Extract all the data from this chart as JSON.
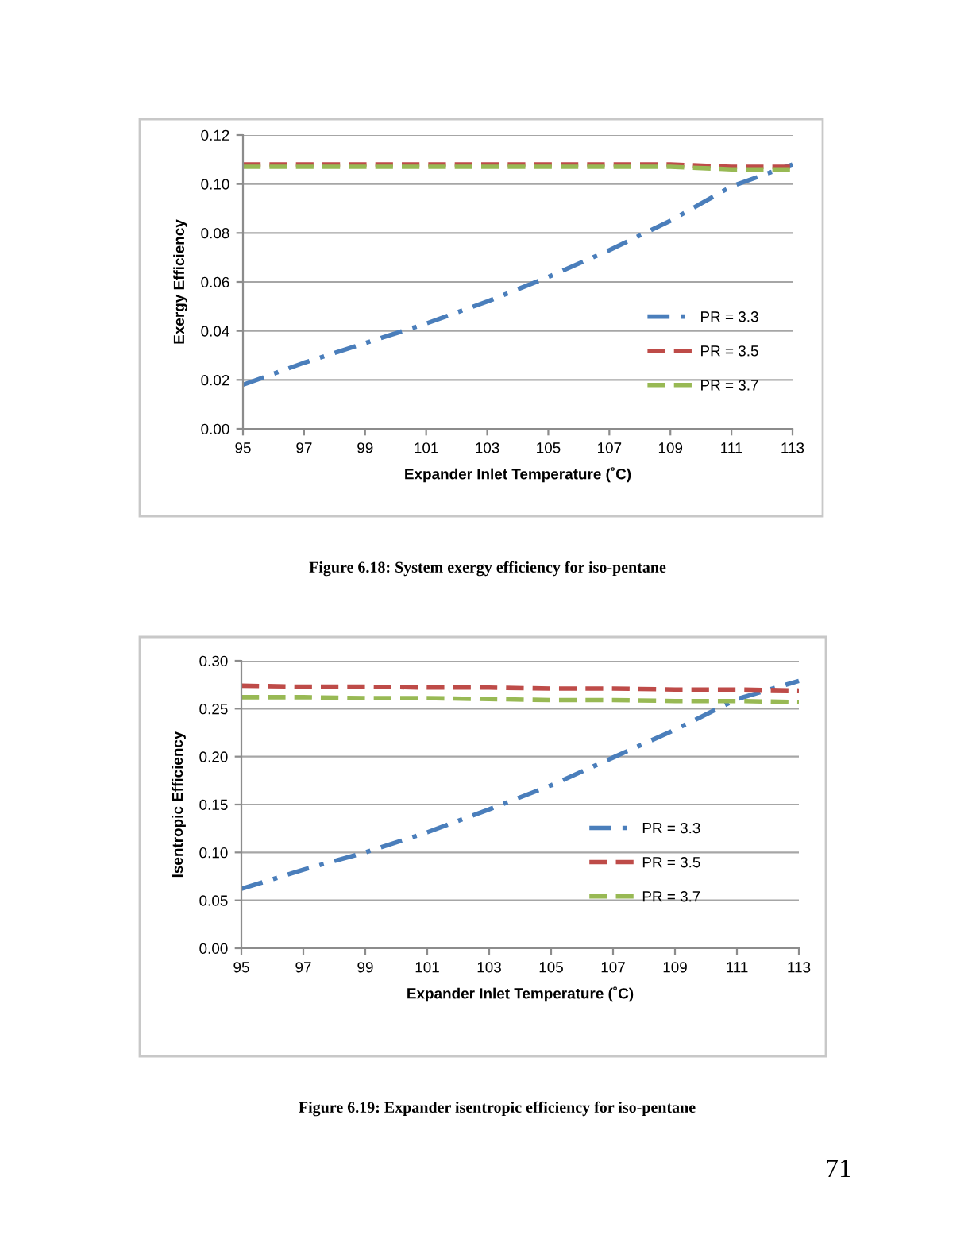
{
  "chart_data": [
    {
      "type": "line",
      "xlabel": "Expander Inlet Temperature (˚C)",
      "ylabel": "Exergy Efficiency",
      "x": [
        95,
        97,
        99,
        101,
        103,
        105,
        107,
        109,
        111,
        113
      ],
      "series": [
        {
          "name": "PR = 3.3",
          "color": "#4a7ebb",
          "line_style": "dashdot",
          "values": [
            0.018,
            0.027,
            0.035,
            0.043,
            0.052,
            0.062,
            0.073,
            0.085,
            0.099,
            0.108
          ]
        },
        {
          "name": "PR = 3.5",
          "color": "#be4b48",
          "line_style": "dashed",
          "values": [
            0.108,
            0.108,
            0.108,
            0.108,
            0.108,
            0.108,
            0.108,
            0.108,
            0.107,
            0.107
          ]
        },
        {
          "name": "PR = 3.7",
          "color": "#98b954",
          "line_style": "dashed",
          "values": [
            0.107,
            0.107,
            0.107,
            0.107,
            0.107,
            0.107,
            0.107,
            0.107,
            0.106,
            0.106
          ]
        }
      ],
      "xlim": [
        95,
        113
      ],
      "xticks": [
        95,
        97,
        99,
        101,
        103,
        105,
        107,
        109,
        111,
        113
      ],
      "ylim": [
        0,
        0.12
      ],
      "yticks": [
        {
          "value": 0,
          "label": "0.00"
        },
        {
          "value": 0.02,
          "label": "0.02"
        },
        {
          "value": 0.04,
          "label": "0.04"
        },
        {
          "value": 0.06,
          "label": "0.06"
        },
        {
          "value": 0.08,
          "label": "0.08"
        },
        {
          "value": 0.1,
          "label": "0.10"
        },
        {
          "value": 0.12,
          "label": "0.12"
        }
      ],
      "grid": "y",
      "legend": "lower right",
      "annotations": [
        "Figure 6.18: System exergy efficiency for iso-pentane"
      ]
    },
    {
      "type": "line",
      "xlabel": "Expander Inlet Temperature (˚C)",
      "ylabel": "Isentropic Efficiency",
      "x": [
        95,
        97,
        99,
        101,
        103,
        105,
        107,
        109,
        111,
        113
      ],
      "series": [
        {
          "name": "PR = 3.3",
          "color": "#4a7ebb",
          "line_style": "dashdot",
          "values": [
            0.062,
            0.082,
            0.1,
            0.121,
            0.145,
            0.17,
            0.199,
            0.228,
            0.26,
            0.279
          ]
        },
        {
          "name": "PR = 3.5",
          "color": "#be4b48",
          "line_style": "dashed",
          "values": [
            0.274,
            0.273,
            0.273,
            0.272,
            0.272,
            0.271,
            0.271,
            0.27,
            0.27,
            0.269
          ]
        },
        {
          "name": "PR = 3.7",
          "color": "#98b954",
          "line_style": "dashed",
          "values": [
            0.262,
            0.262,
            0.261,
            0.261,
            0.26,
            0.259,
            0.259,
            0.258,
            0.258,
            0.257
          ]
        }
      ],
      "xlim": [
        95,
        113
      ],
      "xticks": [
        95,
        97,
        99,
        101,
        103,
        105,
        107,
        109,
        111,
        113
      ],
      "ylim": [
        0,
        0.3
      ],
      "yticks": [
        {
          "value": 0,
          "label": "0.00"
        },
        {
          "value": 0.05,
          "label": "0.05"
        },
        {
          "value": 0.1,
          "label": "0.10"
        },
        {
          "value": 0.15,
          "label": "0.15"
        },
        {
          "value": 0.2,
          "label": "0.20"
        },
        {
          "value": 0.25,
          "label": "0.25"
        },
        {
          "value": 0.3,
          "label": "0.30"
        }
      ],
      "grid": "y",
      "legend": "lower right",
      "annotations": [
        "Figure 6.19: Expander isentropic efficiency for iso-pentane",
        "71"
      ]
    }
  ]
}
